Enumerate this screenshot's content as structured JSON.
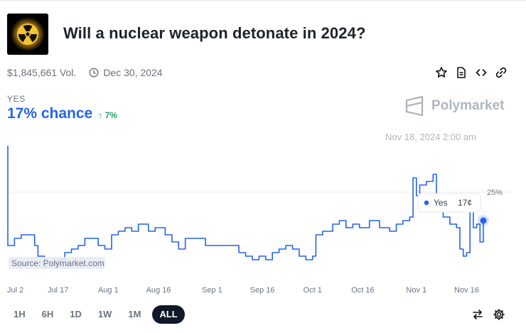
{
  "market": {
    "title": "Will a nuclear weapon detonate in 2024?",
    "volume": "$1,845,661 Vol.",
    "end_date": "Dec 30, 2024",
    "icon": "radiation-icon"
  },
  "actions": [
    "star-icon",
    "document-icon",
    "embed-icon",
    "link-icon"
  ],
  "outcome": {
    "label": "YES",
    "chance": "17% chance",
    "change": "↑ 7%"
  },
  "brand": {
    "name": "Polymarket"
  },
  "hover_date": "Nov 18, 2024 2:00 am",
  "tooltip": {
    "label": "Yes",
    "value": "17¢"
  },
  "source_text": "Source: Polymarket.com",
  "time_ranges": [
    "1H",
    "6H",
    "1D",
    "1W",
    "1M",
    "ALL"
  ],
  "active_range": "ALL",
  "colors": {
    "accent": "#2563eb",
    "positive": "#22a06b",
    "muted": "#6b7280"
  },
  "chart_data": {
    "type": "line",
    "title": "",
    "xlabel": "",
    "ylabel": "",
    "x_ticks": [
      "Jul 2",
      "Jul 17",
      "Aug 1",
      "Aug 16",
      "Sep 1",
      "Sep 16",
      "Oct 1",
      "Oct 16",
      "Nov 1",
      "Nov 16"
    ],
    "y_ticks": [
      {
        "value": 25,
        "label": "25%"
      }
    ],
    "ylim": [
      0,
      40
    ],
    "grid": true,
    "series": [
      {
        "name": "Yes",
        "points": [
          [
            "2024-07-02",
            38
          ],
          [
            "2024-07-02",
            10
          ],
          [
            "2024-07-04",
            12
          ],
          [
            "2024-07-06",
            13
          ],
          [
            "2024-07-09",
            13
          ],
          [
            "2024-07-10",
            10
          ],
          [
            "2024-07-11",
            7
          ],
          [
            "2024-07-13",
            4
          ],
          [
            "2024-07-15",
            5
          ],
          [
            "2024-07-17",
            6
          ],
          [
            "2024-07-19",
            8
          ],
          [
            "2024-07-21",
            9
          ],
          [
            "2024-07-23",
            10
          ],
          [
            "2024-07-25",
            12
          ],
          [
            "2024-07-28",
            12
          ],
          [
            "2024-07-29",
            10
          ],
          [
            "2024-07-31",
            9
          ],
          [
            "2024-08-02",
            13
          ],
          [
            "2024-08-04",
            14
          ],
          [
            "2024-08-06",
            15
          ],
          [
            "2024-08-08",
            14
          ],
          [
            "2024-08-10",
            16
          ],
          [
            "2024-08-13",
            14
          ],
          [
            "2024-08-15",
            15
          ],
          [
            "2024-08-18",
            13
          ],
          [
            "2024-08-20",
            11
          ],
          [
            "2024-08-22",
            9
          ],
          [
            "2024-08-24",
            12
          ],
          [
            "2024-08-26",
            12
          ],
          [
            "2024-08-30",
            10
          ],
          [
            "2024-09-02",
            10
          ],
          [
            "2024-09-05",
            10
          ],
          [
            "2024-09-08",
            10
          ],
          [
            "2024-09-09",
            8
          ],
          [
            "2024-09-11",
            7
          ],
          [
            "2024-09-13",
            6
          ],
          [
            "2024-09-15",
            7
          ],
          [
            "2024-09-17",
            6
          ],
          [
            "2024-09-19",
            8
          ],
          [
            "2024-09-21",
            9
          ],
          [
            "2024-09-23",
            10
          ],
          [
            "2024-09-25",
            9
          ],
          [
            "2024-09-27",
            7
          ],
          [
            "2024-09-29",
            6
          ],
          [
            "2024-10-01",
            7
          ],
          [
            "2024-10-02",
            13
          ],
          [
            "2024-10-04",
            14
          ],
          [
            "2024-10-06",
            14
          ],
          [
            "2024-10-07",
            16
          ],
          [
            "2024-10-09",
            17
          ],
          [
            "2024-10-11",
            15
          ],
          [
            "2024-10-13",
            16
          ],
          [
            "2024-10-15",
            15
          ],
          [
            "2024-10-18",
            17
          ],
          [
            "2024-10-21",
            15
          ],
          [
            "2024-10-24",
            14
          ],
          [
            "2024-10-26",
            16
          ],
          [
            "2024-10-28",
            17
          ],
          [
            "2024-10-30",
            18
          ],
          [
            "2024-10-31",
            29
          ],
          [
            "2024-11-01",
            24
          ],
          [
            "2024-11-02",
            27
          ],
          [
            "2024-11-04",
            28
          ],
          [
            "2024-11-06",
            30
          ],
          [
            "2024-11-07",
            21
          ],
          [
            "2024-11-09",
            18
          ],
          [
            "2024-11-11",
            16
          ],
          [
            "2024-11-13",
            15
          ],
          [
            "2024-11-14",
            9
          ],
          [
            "2024-11-15",
            7
          ],
          [
            "2024-11-16",
            8
          ],
          [
            "2024-11-17",
            22
          ],
          [
            "2024-11-18",
            15
          ],
          [
            "2024-11-19",
            16
          ],
          [
            "2024-11-20",
            11
          ],
          [
            "2024-11-21",
            17
          ]
        ]
      }
    ]
  }
}
